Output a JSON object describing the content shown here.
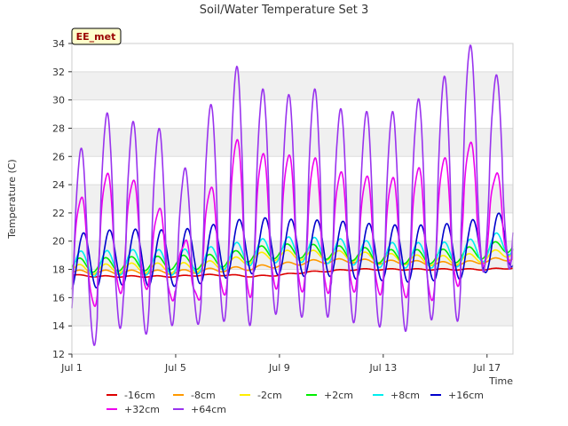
{
  "chart_data": {
    "type": "line",
    "title": "Soil/Water Temperature Set 3",
    "xlabel": "Time",
    "ylabel": "Temperature (C)",
    "ylim": [
      12,
      34
    ],
    "xlim": [
      "Jul 1",
      "Jul 18"
    ],
    "yticks": [
      12,
      14,
      16,
      18,
      20,
      22,
      24,
      26,
      28,
      30,
      32,
      34
    ],
    "xticks": [
      "Jul 1",
      "Jul 5",
      "Jul 9",
      "Jul 13",
      "Jul 17"
    ],
    "station_badge": "EE_met",
    "grid": true,
    "legend_position": "bottom",
    "series": [
      {
        "name": "-16cm",
        "color": "#dd0000",
        "baseline": [
          17.6,
          17.5,
          17.5,
          17.5,
          17.5,
          17.6,
          17.6,
          17.5,
          17.6,
          17.8,
          17.9,
          18.0,
          18.0,
          18.0,
          18.0,
          18.0,
          18.0,
          18.1
        ],
        "amplitude": 0.05,
        "skew": 0.3
      },
      {
        "name": "-8cm",
        "color": "#ff9900",
        "baseline": [
          17.8,
          17.8,
          17.8,
          17.8,
          17.8,
          17.9,
          18.0,
          18.1,
          18.3,
          18.5,
          18.6,
          18.6,
          18.5,
          18.5,
          18.4,
          18.4,
          18.6,
          18.8
        ],
        "amplitude": 0.15,
        "skew": 0.3
      },
      {
        "name": "-2cm",
        "color": "#ffee00",
        "baseline": [
          18.0,
          18.0,
          18.1,
          18.1,
          18.1,
          18.2,
          18.4,
          18.8,
          19.0,
          19.0,
          19.0,
          18.9,
          18.8,
          18.7,
          18.6,
          18.7,
          18.9,
          19.3
        ],
        "amplitude": 0.35,
        "skew": 0.3
      },
      {
        "name": "+2cm",
        "color": "#00ee00",
        "baseline": [
          18.3,
          18.3,
          18.4,
          18.4,
          18.5,
          18.5,
          18.7,
          19.1,
          19.3,
          19.3,
          19.2,
          19.1,
          18.9,
          18.9,
          18.9,
          19.0,
          19.3,
          19.8
        ],
        "amplitude": 0.5,
        "skew": 0.3
      },
      {
        "name": "+8cm",
        "color": "#00eeee",
        "baseline": [
          18.4,
          18.4,
          18.5,
          18.5,
          18.5,
          18.6,
          18.9,
          19.2,
          19.4,
          19.4,
          19.3,
          19.2,
          19.0,
          19.0,
          19.0,
          19.1,
          19.5,
          20.0
        ],
        "amplitude": 0.9,
        "skew": 0.35
      },
      {
        "name": "+16cm",
        "color": "#0000cc",
        "baseline": [
          18.5,
          18.7,
          18.9,
          18.8,
          18.8,
          19.0,
          19.4,
          19.7,
          19.6,
          19.5,
          19.5,
          19.3,
          19.2,
          19.1,
          19.2,
          19.3,
          19.8,
          20.2
        ],
        "amplitude": 2.0,
        "skew": 0.45
      },
      {
        "name": "+32cm",
        "color": "#ee00ee",
        "day_peaks": [
          23.1,
          24.8,
          24.3,
          22.3,
          20.0,
          23.8,
          27.2,
          26.2,
          26.1,
          25.9,
          24.9,
          24.6,
          24.5,
          25.2,
          25.9,
          27.0,
          24.8
        ],
        "day_lows": [
          15.4,
          16.3,
          16.6,
          15.8,
          15.9,
          16.2,
          16.0,
          16.6,
          16.4,
          16.3,
          16.4,
          16.2,
          16.0,
          15.8,
          16.8,
          18.2,
          18.5
        ],
        "skew": 0.35
      },
      {
        "name": "+64cm",
        "color": "#9933ee",
        "day_peaks": [
          26.4,
          28.9,
          28.3,
          27.8,
          25.0,
          29.5,
          32.2,
          30.6,
          30.2,
          30.6,
          29.2,
          29.0,
          29.0,
          29.9,
          31.5,
          33.7,
          31.6
        ],
        "day_lows": [
          12.8,
          14.0,
          13.6,
          14.2,
          14.3,
          14.5,
          14.2,
          15.0,
          14.8,
          14.8,
          14.4,
          14.1,
          13.8,
          14.6,
          14.5,
          18.0,
          18.2
        ],
        "skew": 0.35
      }
    ]
  }
}
